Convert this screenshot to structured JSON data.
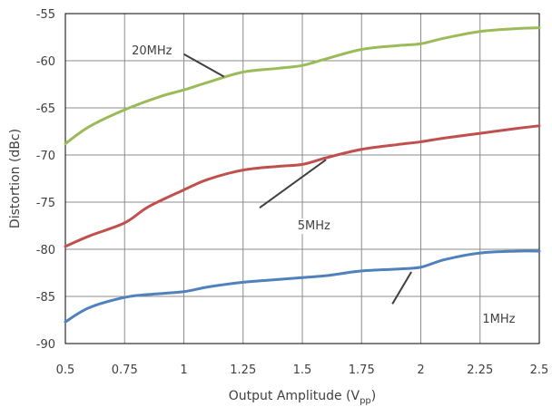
{
  "chart_data": {
    "type": "line",
    "xlabel": "Output Amplitude (V",
    "xlabel_subscript": "pp",
    "xlabel_suffix": ")",
    "ylabel": "Distortion (dBc)",
    "xlim": [
      0.5,
      2.5
    ],
    "ylim": [
      -90,
      -55
    ],
    "x_ticks": [
      0.5,
      0.75,
      1,
      1.25,
      1.5,
      1.75,
      2,
      2.25,
      2.5
    ],
    "x_tick_labels": [
      "0.5",
      "0.75",
      "1",
      "1.25",
      "1.5",
      "1.75",
      "2",
      "2.25",
      "2.5"
    ],
    "y_ticks": [
      -90,
      -85,
      -80,
      -75,
      -70,
      -65,
      -60,
      -55
    ],
    "y_tick_labels": [
      "-90",
      "-85",
      "-80",
      "-75",
      "-70",
      "-65",
      "-60",
      "-55"
    ],
    "grid": true,
    "series": [
      {
        "name": "20MHz",
        "color": "#9bbb59",
        "x": [
          0.5,
          0.6,
          0.75,
          0.9,
          1.0,
          1.1,
          1.25,
          1.4,
          1.5,
          1.6,
          1.75,
          1.9,
          2.0,
          2.1,
          2.25,
          2.4,
          2.5
        ],
        "y": [
          -68.8,
          -67.0,
          -65.2,
          -63.8,
          -63.1,
          -62.3,
          -61.2,
          -60.8,
          -60.5,
          -59.8,
          -58.8,
          -58.4,
          -58.2,
          -57.6,
          -56.9,
          -56.6,
          -56.5
        ]
      },
      {
        "name": "5MHz",
        "color": "#c0504d",
        "x": [
          0.5,
          0.6,
          0.75,
          0.85,
          1.0,
          1.1,
          1.25,
          1.4,
          1.5,
          1.6,
          1.75,
          1.9,
          2.0,
          2.1,
          2.25,
          2.4,
          2.5
        ],
        "y": [
          -79.7,
          -78.6,
          -77.2,
          -75.5,
          -73.7,
          -72.6,
          -71.6,
          -71.2,
          -71.0,
          -70.3,
          -69.4,
          -68.9,
          -68.6,
          -68.2,
          -67.7,
          -67.2,
          -66.9
        ]
      },
      {
        "name": "1MHz",
        "color": "#4f81bd",
        "x": [
          0.5,
          0.6,
          0.75,
          0.85,
          1.0,
          1.1,
          1.25,
          1.4,
          1.5,
          1.6,
          1.75,
          1.9,
          2.0,
          2.1,
          2.25,
          2.4,
          2.5
        ],
        "y": [
          -87.7,
          -86.2,
          -85.1,
          -84.8,
          -84.5,
          -84.0,
          -83.5,
          -83.2,
          -83.0,
          -82.8,
          -82.3,
          -82.1,
          -81.9,
          -81.1,
          -80.4,
          -80.2,
          -80.2
        ]
      }
    ],
    "annotations": [
      {
        "text": "20MHz",
        "label_at": [
          0.78,
          -59.35
        ],
        "leader_from": [
          1.0,
          -59.3
        ],
        "leader_to": [
          1.17,
          -61.7
        ]
      },
      {
        "text": "5MHz",
        "label_at": [
          1.48,
          -77.9
        ],
        "leader_from": [
          1.32,
          -75.6
        ],
        "leader_to": [
          1.6,
          -70.5
        ]
      },
      {
        "text": "1MHz",
        "label_at": [
          2.26,
          -87.8
        ],
        "leader_from": [
          1.88,
          -85.8
        ],
        "leader_to": [
          1.96,
          -82.4
        ]
      }
    ]
  }
}
